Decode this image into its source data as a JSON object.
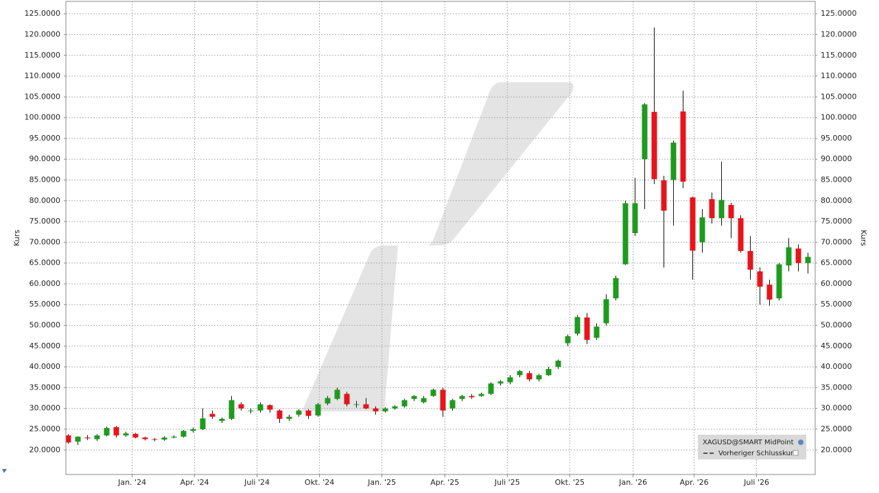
{
  "chart_data": {
    "type": "candlestick",
    "ylabel": "Kurs",
    "legend": [
      "XAGUSD@SMART MidPoint",
      "Vorheriger Schlusskurs"
    ],
    "up_color": "#1e9a1e",
    "down_color": "#e8141b",
    "grid": true,
    "xlim": [
      -0.5,
      155.5
    ],
    "ylim": [
      14.1,
      128
    ],
    "xticks": [
      {
        "value": 13.3,
        "label": "Jan. '24"
      },
      {
        "value": 26.3,
        "label": "Apr. '24"
      },
      {
        "value": 39.3,
        "label": "Juli '24"
      },
      {
        "value": 52.3,
        "label": "Okt. '24"
      },
      {
        "value": 65.3,
        "label": "Jan. '25"
      },
      {
        "value": 78.4,
        "label": "Apr. '25"
      },
      {
        "value": 91.4,
        "label": "Juli '25"
      },
      {
        "value": 104.4,
        "label": "Okt. '25"
      },
      {
        "value": 117.6,
        "label": "Jan. '26"
      },
      {
        "value": 130.3,
        "label": "Apr. '26"
      },
      {
        "value": 143.3,
        "label": "Juli '26"
      }
    ],
    "yticks": [
      {
        "value": 20,
        "label": "20.0000"
      },
      {
        "value": 25,
        "label": "25.0000"
      },
      {
        "value": 30,
        "label": "30.0000"
      },
      {
        "value": 35,
        "label": "35.0000"
      },
      {
        "value": 40,
        "label": "40.0000"
      },
      {
        "value": 45,
        "label": "45.0000"
      },
      {
        "value": 50,
        "label": "50.0000"
      },
      {
        "value": 55,
        "label": "55.0000"
      },
      {
        "value": 60,
        "label": "60.0000"
      },
      {
        "value": 65,
        "label": "65.0000"
      },
      {
        "value": 70,
        "label": "70.0000"
      },
      {
        "value": 75,
        "label": "75.0000"
      },
      {
        "value": 80,
        "label": "80.0000"
      },
      {
        "value": 85,
        "label": "85.0000"
      },
      {
        "value": 90,
        "label": "90.0000"
      },
      {
        "value": 95,
        "label": "95.0000"
      },
      {
        "value": 100,
        "label": "100.0000"
      },
      {
        "value": 105,
        "label": "105.0000"
      },
      {
        "value": 110,
        "label": "110.0000"
      },
      {
        "value": 115,
        "label": "115.0000"
      },
      {
        "value": 120,
        "label": "120.0000"
      },
      {
        "value": 125,
        "label": "125.0000"
      }
    ],
    "x": [
      0,
      2,
      4,
      6,
      8,
      10,
      12,
      14,
      16,
      18,
      20,
      22,
      24,
      26,
      28,
      30,
      32,
      34,
      36,
      38,
      40,
      42,
      44,
      46,
      48,
      50,
      52,
      54,
      56,
      58,
      60,
      62,
      64,
      66,
      68,
      70,
      72,
      74,
      76,
      78,
      80,
      82,
      84,
      86,
      88,
      90,
      92,
      94,
      96,
      98,
      100,
      102,
      104,
      106,
      108,
      110,
      112,
      114,
      116,
      118,
      120,
      122,
      124,
      126,
      128,
      130,
      132,
      134,
      136,
      138,
      140,
      142,
      144,
      146,
      148,
      150,
      152,
      154
    ],
    "open": [
      23.5,
      22,
      23,
      22.6,
      23.5,
      25.5,
      23.5,
      23.9,
      23,
      22.6,
      22.5,
      23,
      23.2,
      24.6,
      25,
      28.7,
      27,
      27.5,
      31,
      29.5,
      29.5,
      30.8,
      29.5,
      27.5,
      28.5,
      29.5,
      28.3,
      31.2,
      32.3,
      33.5,
      31,
      31,
      30,
      29.3,
      30,
      30.5,
      32.3,
      31.5,
      33,
      34.5,
      30,
      32.3,
      33,
      33,
      33.5,
      36,
      36.3,
      38,
      38.5,
      37,
      38,
      40,
      45.7,
      48,
      51.9,
      47,
      50.5,
      56.5,
      64.7,
      72.2,
      90,
      101.4,
      84.9,
      85,
      101.5,
      80.8,
      70,
      80.4,
      75.8,
      79,
      75.8,
      67.9,
      63,
      59.8,
      56.5,
      64.4,
      68.5,
      65
    ],
    "high": [
      23.8,
      23.3,
      23.6,
      23.8,
      25.6,
      25.8,
      24.4,
      24.1,
      23.2,
      22.9,
      23.3,
      23.5,
      24.8,
      25.4,
      30,
      29.5,
      27.8,
      33,
      31.5,
      30,
      31.5,
      31,
      29.8,
      28.5,
      29.8,
      29.8,
      31.3,
      33,
      35,
      34,
      31.8,
      32.5,
      30.5,
      30.3,
      30.8,
      32.3,
      33.2,
      33,
      34.8,
      35,
      32.3,
      33.3,
      33.5,
      33.8,
      36.3,
      36.8,
      38,
      39.3,
      39,
      38.3,
      40,
      41.8,
      47.8,
      52.5,
      53,
      50.5,
      57.5,
      62,
      80,
      85.5,
      103.5,
      121.7,
      86,
      94.5,
      106.5,
      81,
      78,
      82,
      89.4,
      79.5,
      76.5,
      71.5,
      64,
      61,
      65,
      71,
      69.5,
      67.5
    ],
    "low": [
      21.5,
      21.2,
      22.4,
      22.2,
      23.3,
      23,
      23.2,
      22.8,
      22.3,
      22.1,
      22.2,
      22.8,
      23,
      24.2,
      24.8,
      27.5,
      26.5,
      27.2,
      29.5,
      28.8,
      29,
      29,
      26.5,
      27,
      28,
      27.5,
      28,
      30.8,
      32,
      30.5,
      30.2,
      29.8,
      28.5,
      29,
      29.7,
      30.2,
      31.8,
      31.2,
      32.8,
      28,
      29.5,
      31.8,
      32.3,
      32.8,
      33.2,
      35.5,
      35.8,
      37.5,
      36.5,
      36.5,
      37.8,
      39.5,
      45,
      47.5,
      45.5,
      46.5,
      50,
      56,
      64.5,
      71.5,
      78,
      84,
      63.9,
      74,
      83,
      61,
      67.5,
      74.5,
      74,
      71,
      67.5,
      61,
      55,
      54.7,
      56,
      63,
      63,
      62.5
    ],
    "close": [
      21.8,
      23.2,
      22.8,
      23.5,
      25.3,
      23.5,
      24,
      23,
      22.6,
      22.5,
      23,
      23.2,
      24.6,
      25,
      27.6,
      28,
      27.5,
      32,
      30,
      29.5,
      31,
      29.7,
      27.5,
      28,
      29.5,
      28.2,
      31,
      32.5,
      34.5,
      31,
      31,
      30,
      29.3,
      30,
      30.5,
      32,
      33,
      32.5,
      34.5,
      29.5,
      32,
      33,
      32.7,
      33.5,
      36,
      36.5,
      37.5,
      39,
      37,
      38,
      39.5,
      41.5,
      47.4,
      52,
      46.5,
      49.7,
      56.3,
      61.4,
      79.4,
      79.4,
      103.2,
      85.2,
      77.6,
      94,
      84.6,
      68,
      76,
      75.8,
      80.2,
      75.8,
      67.9,
      63.4,
      59.3,
      56.2,
      64.7,
      68.8,
      65,
      66.5
    ]
  }
}
